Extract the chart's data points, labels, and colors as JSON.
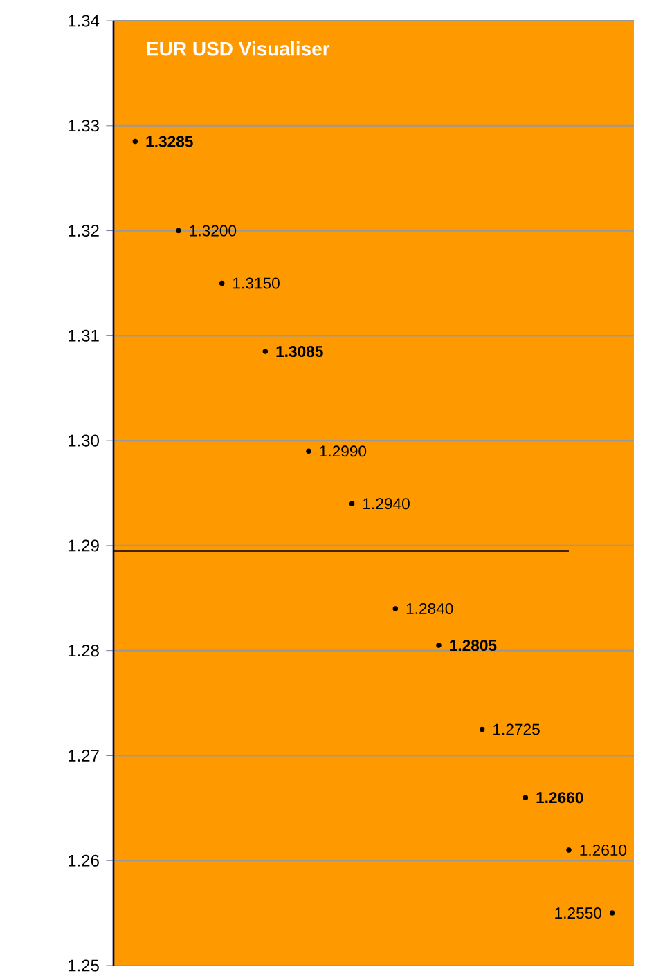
{
  "chart_data": {
    "type": "scatter",
    "title": "EUR USD Visualiser",
    "categories": [
      null,
      null,
      null,
      null,
      null,
      null,
      null,
      null,
      null,
      null,
      null,
      null
    ],
    "series": [
      {
        "color": "#000000",
        "values": [
          null,
          1.32,
          1.315,
          null,
          1.299,
          1.294,
          1.284,
          null,
          1.2725,
          null,
          1.261,
          1.255
        ],
        "value_labels": [
          null,
          "1.3200",
          "1.3150",
          null,
          "1.2990",
          "1.2940",
          "1.2840",
          null,
          "1.2725",
          null,
          "1.2610",
          "1.2550"
        ]
      },
      {
        "color": "#000000",
        "values": [
          1.3285,
          null,
          null,
          1.3085,
          null,
          null,
          null,
          1.2805,
          null,
          1.266,
          null,
          null
        ],
        "value_labels": [
          "1.3285",
          null,
          null,
          "1.3085",
          null,
          null,
          null,
          "1.2805",
          null,
          "1.2660",
          null,
          null
        ]
      }
    ],
    "marker": "circle",
    "ylim": [
      1.25,
      1.34
    ],
    "yticks": [
      {
        "value": 1.25,
        "label": "1.25"
      },
      {
        "value": 1.26,
        "label": "1.26"
      },
      {
        "value": 1.27,
        "label": "1.27"
      },
      {
        "value": 1.28,
        "label": "1.28"
      },
      {
        "value": 1.29,
        "label": "1.29"
      },
      {
        "value": 1.3,
        "label": "1.30"
      },
      {
        "value": 1.31,
        "label": "1.31"
      },
      {
        "value": 1.32,
        "label": "1.32"
      },
      {
        "value": 1.33,
        "label": "1.33"
      },
      {
        "value": 1.34,
        "label": "1.34"
      }
    ],
    "ref_lines": [
      {
        "axis": "y",
        "value": 1.2895,
        "color": "#000000"
      }
    ],
    "grid": "y",
    "tick_labels": "y"
  }
}
